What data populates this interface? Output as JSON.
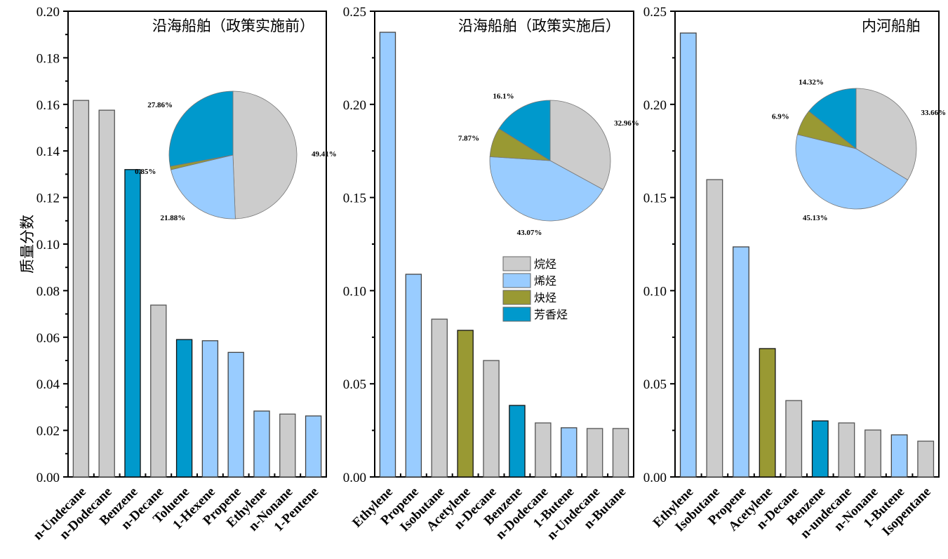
{
  "categories_legend": [
    {
      "key": "alkane",
      "label": "烷烃",
      "color": "#cccccc"
    },
    {
      "key": "alkene",
      "label": "烯烃",
      "color": "#99ccff"
    },
    {
      "key": "alkyne",
      "label": "炔烃",
      "color": "#999933"
    },
    {
      "key": "aromatic",
      "label": "芳香烃",
      "color": "#0099cc"
    }
  ],
  "ylabel": "质量分数",
  "chart_data": [
    {
      "type": "bar",
      "title": "沿海船舶（政策实施前）",
      "ylabel": "质量分数",
      "xlabel": "",
      "ylim": [
        0,
        0.2
      ],
      "yticks": [
        "0.00",
        "0.02",
        "0.04",
        "0.06",
        "0.08",
        "0.10",
        "0.12",
        "0.14",
        "0.16",
        "0.18",
        "0.20"
      ],
      "ytick_values": [
        0,
        0.02,
        0.04,
        0.06,
        0.08,
        0.1,
        0.12,
        0.14,
        0.16,
        0.18,
        0.2
      ],
      "categories": [
        "n-Undecane",
        "n-Dodecane",
        "Benzene",
        "n-Decane",
        "Toluene",
        "1-Hexene",
        "Propene",
        "Ethylene",
        "n-Nonane",
        "1-Pentene"
      ],
      "values": [
        0.1617,
        0.1575,
        0.132,
        0.0738,
        0.059,
        0.0585,
        0.0535,
        0.0283,
        0.027,
        0.0262
      ],
      "groups": [
        "alkane",
        "alkane",
        "aromatic",
        "alkane",
        "aromatic",
        "alkene",
        "alkene",
        "alkene",
        "alkane",
        "alkene"
      ],
      "inset_pie": {
        "type": "pie",
        "slices": [
          {
            "group": "alkane",
            "value": 49.41,
            "label": "49.41%"
          },
          {
            "group": "alkene",
            "value": 21.88,
            "label": "21.88%"
          },
          {
            "group": "alkyne",
            "value": 0.85,
            "label": "0.85%"
          },
          {
            "group": "aromatic",
            "value": 27.86,
            "label": "27.86%"
          }
        ]
      },
      "legend": null
    },
    {
      "type": "bar",
      "title": "沿海船舶（政策实施后）",
      "ylabel": "",
      "xlabel": "",
      "ylim": [
        0,
        0.25
      ],
      "yticks": [
        "0.00",
        "0.05",
        "0.10",
        "0.15",
        "0.20",
        "0.25"
      ],
      "ytick_values": [
        0,
        0.05,
        0.1,
        0.15,
        0.2,
        0.25
      ],
      "categories": [
        "Ethylene",
        "Propene",
        "Isobutane",
        "Acetylene",
        "n-Decane",
        "Benzene",
        "n-Dodecane",
        "1-Butene",
        "n-Undecane",
        "n-Butane"
      ],
      "values": [
        0.2387,
        0.1088,
        0.0847,
        0.0787,
        0.0625,
        0.0384,
        0.029,
        0.0264,
        0.026,
        0.026
      ],
      "groups": [
        "alkene",
        "alkene",
        "alkane",
        "alkyne",
        "alkane",
        "aromatic",
        "alkane",
        "alkene",
        "alkane",
        "alkane"
      ],
      "inset_pie": {
        "type": "pie",
        "slices": [
          {
            "group": "alkane",
            "value": 32.96,
            "label": "32.96%"
          },
          {
            "group": "alkene",
            "value": 43.07,
            "label": "43.07%"
          },
          {
            "group": "alkyne",
            "value": 7.87,
            "label": "7.87%"
          },
          {
            "group": "aromatic",
            "value": 16.1,
            "label": "16.1%"
          }
        ]
      },
      "legend": "center-right"
    },
    {
      "type": "bar",
      "title": "内河船舶",
      "ylabel": "",
      "xlabel": "",
      "ylim": [
        0,
        0.25
      ],
      "yticks": [
        "0.00",
        "0.05",
        "0.10",
        "0.15",
        "0.20",
        "0.25"
      ],
      "ytick_values": [
        0,
        0.05,
        0.1,
        0.15,
        0.2,
        0.25
      ],
      "categories": [
        "Ethylene",
        "Isobutane",
        "Propene",
        "Acetylene",
        "n-Decane",
        "Benzene",
        "n-undecane",
        "n-Nonane",
        "1-Butene",
        "Isopentane"
      ],
      "values": [
        0.2383,
        0.1596,
        0.1235,
        0.0689,
        0.041,
        0.0301,
        0.029,
        0.0252,
        0.0226,
        0.0192
      ],
      "groups": [
        "alkene",
        "alkane",
        "alkene",
        "alkyne",
        "alkane",
        "aromatic",
        "alkane",
        "alkane",
        "alkene",
        "alkane"
      ],
      "inset_pie": {
        "type": "pie",
        "slices": [
          {
            "group": "alkane",
            "value": 33.66,
            "label": "33.66%"
          },
          {
            "group": "alkene",
            "value": 45.13,
            "label": "45.13%"
          },
          {
            "group": "alkyne",
            "value": 6.9,
            "label": "6.9%"
          },
          {
            "group": "aromatic",
            "value": 14.32,
            "label": "14.32%"
          }
        ]
      },
      "legend": null
    }
  ]
}
